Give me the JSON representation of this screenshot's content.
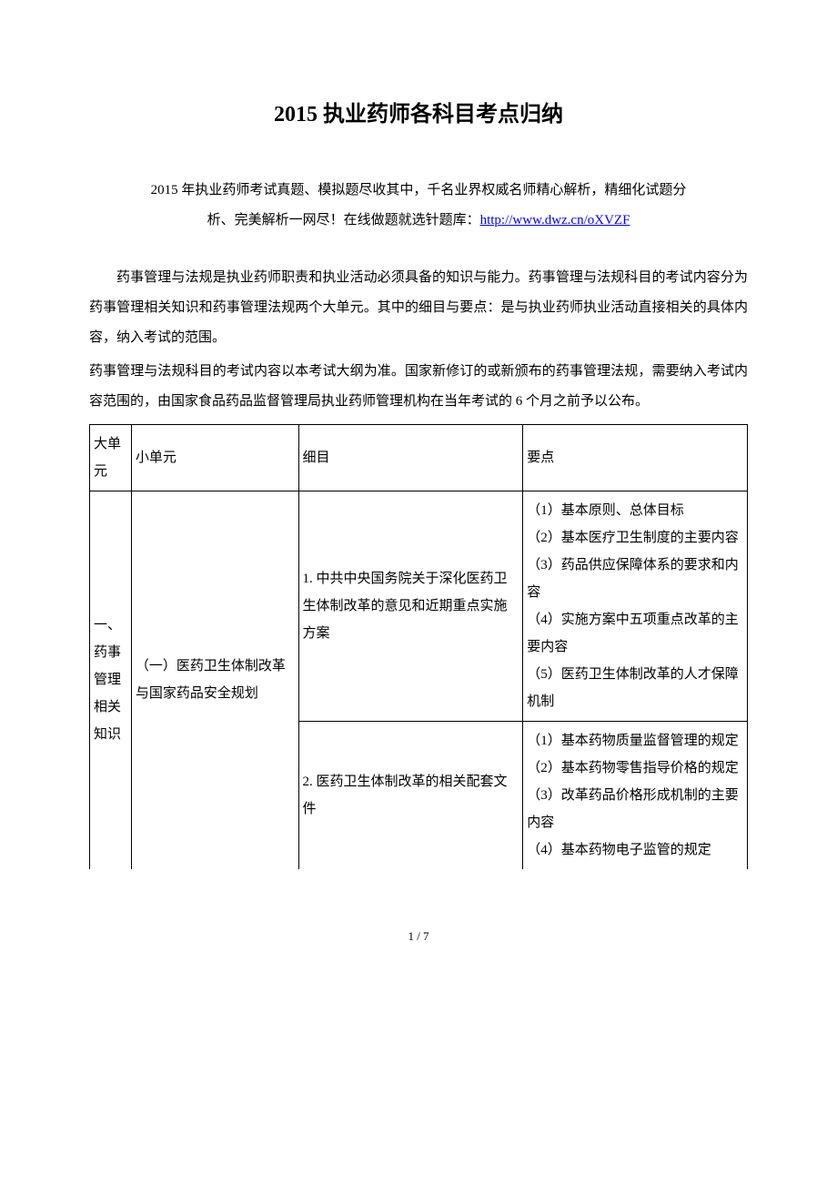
{
  "title": "2015 执业药师各科目考点归纳",
  "intro_line1": "2015 年执业药师考试真题、模拟题尽收其中，千名业界权威名师精心解析，精细化试题分",
  "intro_line2_prefix": "析、完美解析一网尽！在线做题就选针题库：",
  "intro_link": "http://www.dwz.cn/oXVZF",
  "para1": "药事管理与法规是执业药师职责和执业活动必须具备的知识与能力。药事管理与法规科目的考试内容分为药事管理相关知识和药事管理法规两个大单元。其中的细目与要点：是与执业药师执业活动直接相关的具体内容，纳入考试的范围。",
  "para2": "药事管理与法规科目的考试内容以本考试大纲为准。国家新修订的或新颁布的药事管理法规，需要纳入考试内容范围的，由国家食品药品监督管理局执业药师管理机构在当年考试的 6 个月之前予以公布。",
  "table": {
    "header": {
      "col1": "大单元",
      "col2": "小单元",
      "col3": "细目",
      "col4": "要点"
    },
    "big_unit": "一、药事管理相关知识",
    "small_unit": "（一）医药卫生体制改革与国家药品安全规划",
    "detail1": "1. 中共中央国务院关于深化医药卫生体制改革的意见和近期重点实施方案",
    "points1": "（1）基本原则、总体目标\n（2）基本医疗卫生制度的主要内容\n（3）药品供应保障体系的要求和内容\n（4）实施方案中五项重点改革的主要内容\n（5）医药卫生体制改革的人才保障机制",
    "detail2": "2. 医药卫生体制改革的相关配套文件",
    "points2": "（1）基本药物质量监督管理的规定\n（2）基本药物零售指导价格的规定\n（3）改革药品价格形成机制的主要内容\n（4）基本药物电子监管的规定"
  },
  "page_number": "1 / 7"
}
